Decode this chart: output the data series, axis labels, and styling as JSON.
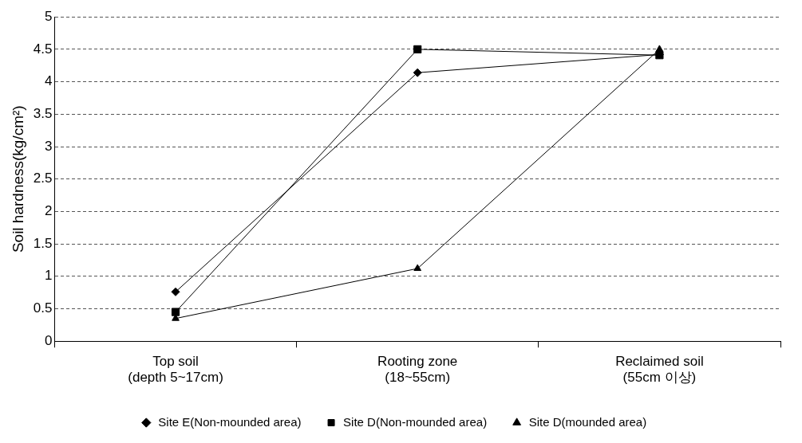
{
  "chart_data": {
    "type": "line",
    "ylabel": "Soil hardness(kg/cm²)",
    "categories": [
      "Top soil\n(depth 5~17cm)",
      "Rooting zone\n(18~55cm)",
      "Reclaimed soil\n(55cm 이상)"
    ],
    "series": [
      {
        "name": "Site E(Non-mounded area)",
        "color": "#000000",
        "marker": "diamond",
        "values": [
          0.76,
          4.14,
          4.42
        ]
      },
      {
        "name": "Site D(Non-mounded area)",
        "color": "#000000",
        "marker": "square",
        "values": [
          0.45,
          4.5,
          4.41
        ]
      },
      {
        "name": "Site D(mounded area)",
        "color": "#000000",
        "marker": "triangle",
        "values": [
          0.35,
          1.12,
          4.5
        ]
      }
    ],
    "ylim": [
      0,
      5
    ],
    "yticks": [
      0,
      0.5,
      1,
      1.5,
      2,
      2.5,
      3,
      3.5,
      4,
      4.5,
      5
    ],
    "grid": "y",
    "legend": "bottom",
    "line_style": "solid"
  }
}
